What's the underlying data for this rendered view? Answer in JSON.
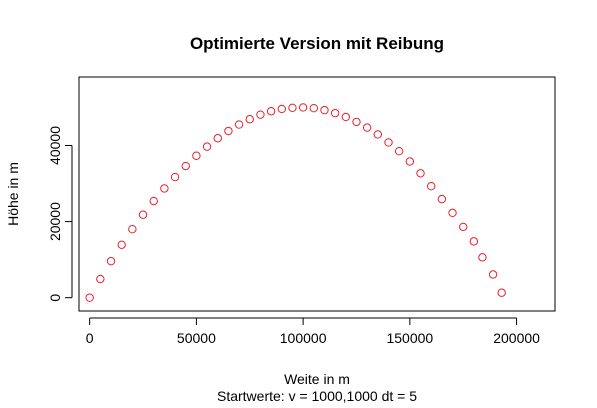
{
  "chart_data": {
    "type": "scatter",
    "title": "Optimierte Version mit Reibung",
    "xlabel": "Weite in m",
    "ylabel": "Höhe in m",
    "subtitle": "Startwerte: v = 1000,1000 dt = 5",
    "xlim": [
      -5000,
      218000
    ],
    "ylim": [
      -3500,
      58000
    ],
    "xticks": [
      "0",
      "50000",
      "100000",
      "150000",
      "200000"
    ],
    "yticks": [
      "0",
      "20000",
      "40000"
    ],
    "grid": false,
    "point_color": "#e8202a",
    "points": [
      [
        0,
        0
      ],
      [
        5000,
        4900
      ],
      [
        10000,
        9600
      ],
      [
        15000,
        13900
      ],
      [
        20000,
        18000
      ],
      [
        25000,
        21800
      ],
      [
        30000,
        25400
      ],
      [
        35000,
        28700
      ],
      [
        40000,
        31700
      ],
      [
        45000,
        34600
      ],
      [
        50000,
        37300
      ],
      [
        55000,
        39700
      ],
      [
        60000,
        41900
      ],
      [
        65000,
        43800
      ],
      [
        70000,
        45500
      ],
      [
        75000,
        46900
      ],
      [
        80000,
        48100
      ],
      [
        85000,
        49000
      ],
      [
        90000,
        49600
      ],
      [
        95000,
        49900
      ],
      [
        100000,
        50000
      ],
      [
        105000,
        49800
      ],
      [
        110000,
        49300
      ],
      [
        115000,
        48500
      ],
      [
        120000,
        47500
      ],
      [
        125000,
        46200
      ],
      [
        130000,
        44700
      ],
      [
        135000,
        42900
      ],
      [
        140000,
        40800
      ],
      [
        145000,
        38500
      ],
      [
        150000,
        35800
      ],
      [
        155000,
        32700
      ],
      [
        160000,
        29300
      ],
      [
        165000,
        25900
      ],
      [
        170000,
        22300
      ],
      [
        175000,
        18600
      ],
      [
        180000,
        14800
      ],
      [
        184000,
        10600
      ],
      [
        189000,
        6100
      ],
      [
        193000,
        1300
      ]
    ]
  }
}
